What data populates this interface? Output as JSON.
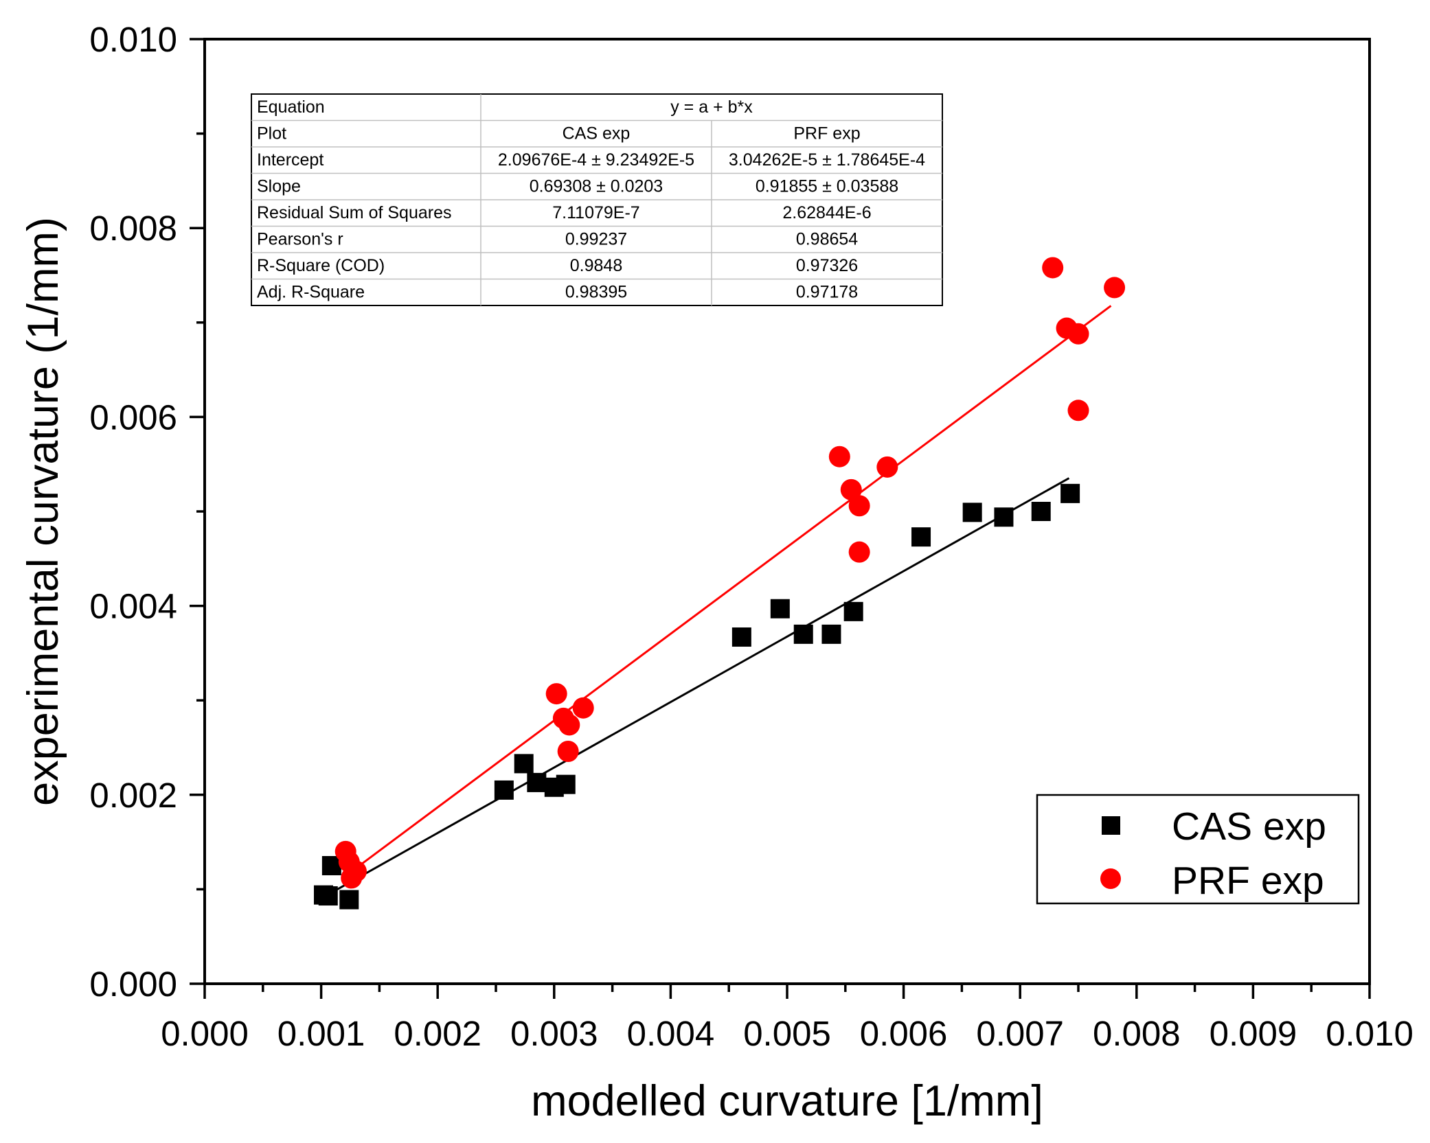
{
  "chart_data": {
    "type": "scatter",
    "xlabel": "modelled curvature [1/mm]",
    "ylabel": "experimental curvature (1/mm)",
    "xlim": [
      0,
      0.01
    ],
    "ylim": [
      0,
      0.01
    ],
    "x_ticks": [
      "0.000",
      "0.001",
      "0.002",
      "0.003",
      "0.004",
      "0.005",
      "0.006",
      "0.007",
      "0.008",
      "0.009",
      "0.010"
    ],
    "y_ticks": [
      "0.000",
      "0.002",
      "0.004",
      "0.006",
      "0.008",
      "0.010"
    ],
    "legend": {
      "placement": "bottom-right",
      "entries": [
        "CAS exp",
        "PRF exp"
      ]
    },
    "series": [
      {
        "name": "CAS exp",
        "marker": "square",
        "color": "#000000",
        "x": [
          0.00102,
          0.00106,
          0.00109,
          0.00124,
          0.00257,
          0.00274,
          0.00285,
          0.003,
          0.0031,
          0.00461,
          0.00494,
          0.00514,
          0.00538,
          0.00557,
          0.00615,
          0.00659,
          0.00686,
          0.00718,
          0.00743
        ],
        "y": [
          0.00094,
          0.00093,
          0.00125,
          0.00089,
          0.00205,
          0.00233,
          0.00213,
          0.00208,
          0.00211,
          0.00367,
          0.00397,
          0.0037,
          0.0037,
          0.00394,
          0.00473,
          0.00499,
          0.00494,
          0.005,
          0.00519
        ],
        "fit": {
          "intercept": 0.000209676,
          "slope": 0.69308,
          "x_range": [
            0.0011,
            0.00742
          ]
        }
      },
      {
        "name": "PRF exp",
        "marker": "circle",
        "color": "#ff0000",
        "x": [
          0.00121,
          0.00124,
          0.00126,
          0.0013,
          0.00302,
          0.00308,
          0.00312,
          0.00313,
          0.00325,
          0.00545,
          0.00555,
          0.00562,
          0.00562,
          0.00586,
          0.00728,
          0.0074,
          0.0075,
          0.0075,
          0.00781
        ],
        "y": [
          0.0014,
          0.00129,
          0.00112,
          0.00119,
          0.00307,
          0.00281,
          0.00246,
          0.00274,
          0.00292,
          0.00558,
          0.00523,
          0.00506,
          0.00457,
          0.00547,
          0.00758,
          0.00694,
          0.00688,
          0.00607,
          0.00737
        ],
        "fit": {
          "intercept": 3.04262e-05,
          "slope": 0.91855,
          "x_range": [
            0.00118,
            0.00778
          ]
        }
      }
    ],
    "stats_table": {
      "rows": [
        {
          "label": "Equation",
          "merged": "y = a + b*x"
        },
        {
          "label": "Plot",
          "cas": "CAS exp",
          "prf": "PRF exp"
        },
        {
          "label": "Intercept",
          "cas": "2.09676E-4 ± 9.23492E-5",
          "prf": "3.04262E-5 ± 1.78645E-4"
        },
        {
          "label": "Slope",
          "cas": "0.69308 ± 0.0203",
          "prf": "0.91855 ± 0.03588"
        },
        {
          "label": "Residual Sum of Squares",
          "cas": "7.11079E-7",
          "prf": "2.62844E-6"
        },
        {
          "label": "Pearson's r",
          "cas": "0.99237",
          "prf": "0.98654"
        },
        {
          "label": "R-Square (COD)",
          "cas": "0.9848",
          "prf": "0.97326"
        },
        {
          "label": "Adj. R-Square",
          "cas": "0.98395",
          "prf": "0.97178"
        }
      ]
    }
  }
}
